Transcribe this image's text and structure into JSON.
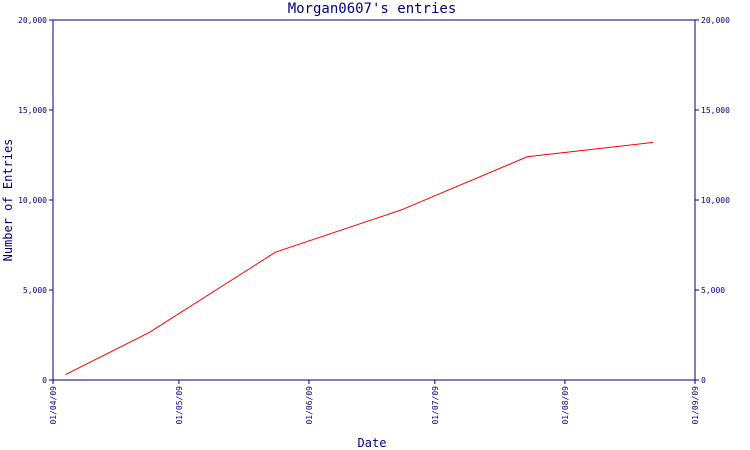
{
  "chart_data": {
    "type": "line",
    "title": "Morgan0607's entries",
    "xlabel": "Date",
    "ylabel": "Number of Entries",
    "x_ticks": [
      "01/04/09",
      "01/05/09",
      "01/06/09",
      "01/07/09",
      "01/08/09",
      "01/09/09"
    ],
    "x_range": [
      "2009-04-01",
      "2009-09-01"
    ],
    "ylim": [
      0,
      20000
    ],
    "y_ticks": [
      0,
      5000,
      10000,
      15000,
      20000
    ],
    "y_tick_labels": [
      "0",
      "5,000",
      "10,000",
      "15,000",
      "20,000"
    ],
    "grid": false,
    "series": [
      {
        "color": "#ff0000",
        "x": [
          "2009-04-04",
          "2009-04-24",
          "2009-05-24",
          "2009-06-23",
          "2009-07-23",
          "2009-08-22"
        ],
        "y": [
          300,
          2650,
          7100,
          9450,
          12400,
          13200
        ]
      }
    ],
    "axis_color": "#000080"
  }
}
